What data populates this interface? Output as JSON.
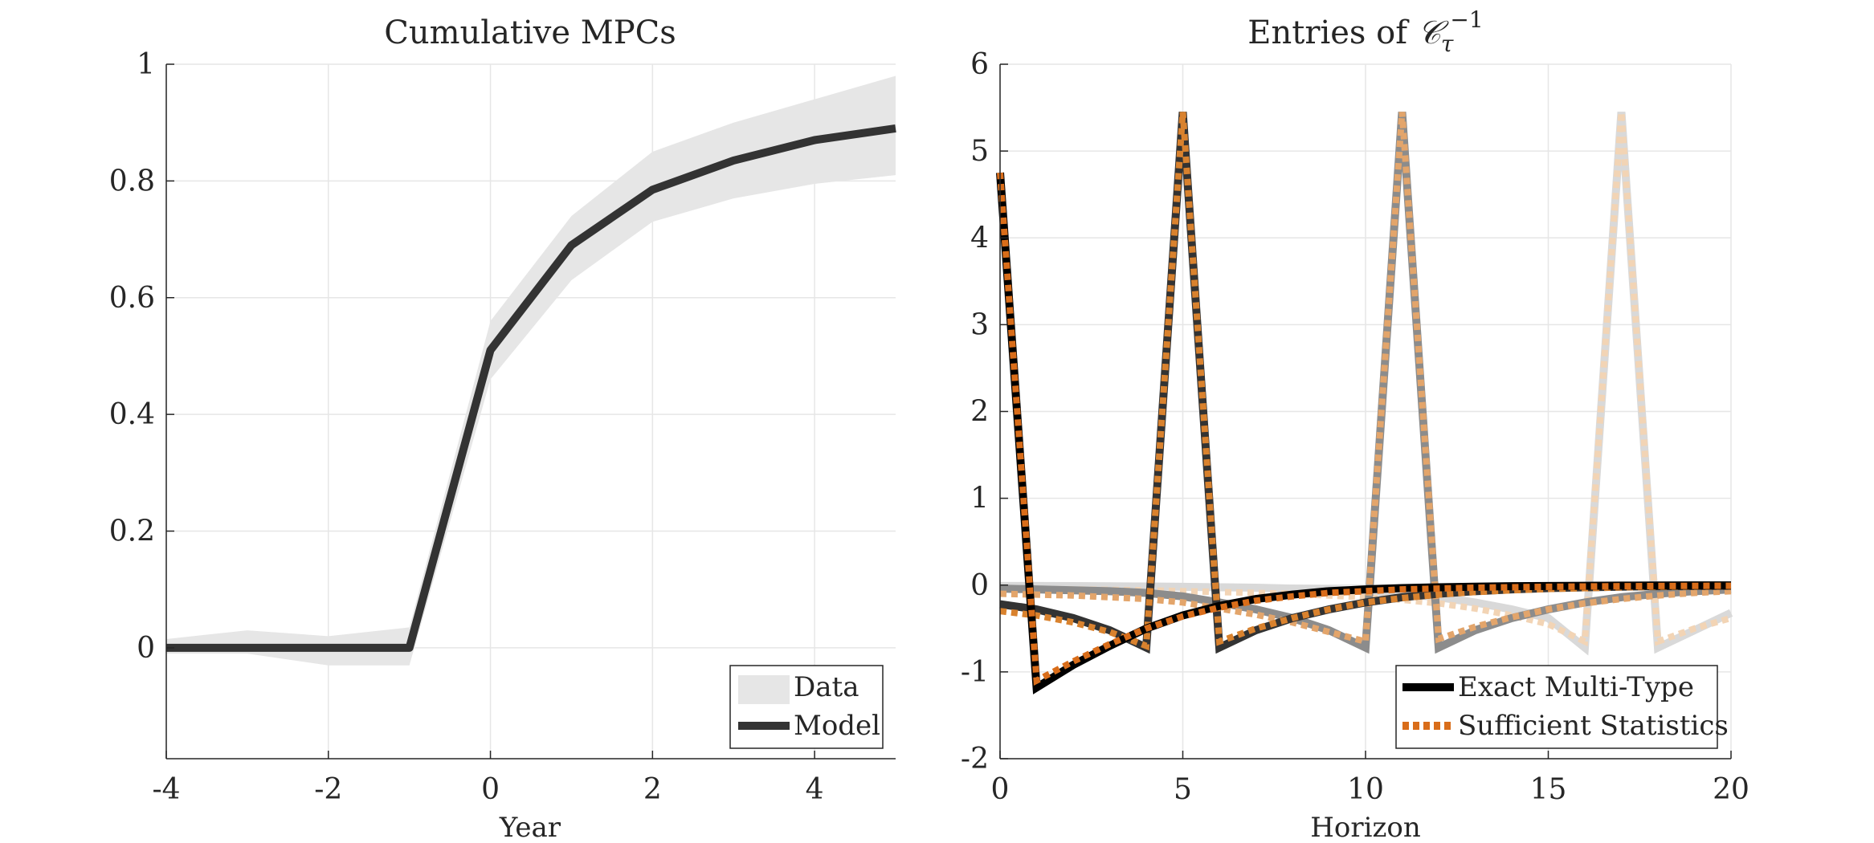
{
  "chart_data": [
    {
      "type": "line",
      "title": "Cumulative MPCs",
      "xlabel": "Year",
      "ylabel": "",
      "xlim": [
        -4,
        5
      ],
      "ylim": [
        -0.19,
        1
      ],
      "xticks": [
        -4,
        -2,
        0,
        2,
        4
      ],
      "yticks": [
        0,
        0.2,
        0.4,
        0.6,
        0.8,
        1
      ],
      "xtick_labels": [
        "-4",
        "-2",
        "0",
        "2",
        "4"
      ],
      "ytick_labels": [
        "0",
        "0.2",
        "0.4",
        "0.6",
        "0.8",
        "1"
      ],
      "grid": true,
      "legend_position": "bottom-right",
      "band": {
        "name": "Data",
        "color": "#e6e6e6",
        "x": [
          -4,
          -3,
          -2,
          -1,
          0,
          1,
          2,
          3,
          4,
          5
        ],
        "lower": [
          -0.01,
          -0.01,
          -0.03,
          -0.03,
          0.46,
          0.63,
          0.73,
          0.77,
          0.795,
          0.81
        ],
        "upper": [
          0.015,
          0.03,
          0.02,
          0.035,
          0.56,
          0.74,
          0.85,
          0.9,
          0.94,
          0.98
        ]
      },
      "series": [
        {
          "name": "Model",
          "color": "#333333",
          "x": [
            -4,
            -3,
            -2,
            -1,
            0,
            1,
            2,
            3,
            4,
            5
          ],
          "values": [
            0,
            0,
            0,
            0,
            0.51,
            0.69,
            0.785,
            0.835,
            0.87,
            0.89
          ]
        }
      ]
    },
    {
      "type": "line",
      "title_prefix": "Entries of ",
      "title_symbol": "𝒞",
      "title_sub": "τ",
      "title_sup": "−1",
      "xlabel": "Horizon",
      "ylabel": "",
      "xlim": [
        0,
        20
      ],
      "ylim": [
        -2,
        6
      ],
      "xticks": [
        0,
        5,
        10,
        15,
        20
      ],
      "yticks": [
        -2,
        -1,
        0,
        1,
        2,
        3,
        4,
        5,
        6
      ],
      "xtick_labels": [
        "0",
        "5",
        "10",
        "15",
        "20"
      ],
      "ytick_labels": [
        "-2",
        "-1",
        "0",
        "1",
        "2",
        "3",
        "4",
        "5",
        "6"
      ],
      "grid": true,
      "legend_position": "bottom-right",
      "legend": [
        {
          "name": "Exact Multi-Type",
          "color": "#000000",
          "style": "solid"
        },
        {
          "name": "Sufficient Statistics",
          "color": "#d96d1a",
          "style": "dotted"
        }
      ],
      "series": [
        {
          "column": 0,
          "exact_color": "#000000",
          "suff_color": "#d96d1a",
          "x": [
            0,
            1,
            2,
            3,
            4,
            5,
            6,
            7,
            8,
            9,
            10,
            11,
            12,
            13,
            14,
            15,
            16,
            17,
            18,
            19,
            20
          ],
          "exact": [
            4.75,
            -1.18,
            -0.92,
            -0.7,
            -0.5,
            -0.35,
            -0.24,
            -0.16,
            -0.11,
            -0.07,
            -0.05,
            -0.035,
            -0.025,
            -0.018,
            -0.013,
            -0.01,
            -0.008,
            -0.006,
            -0.005,
            -0.004,
            -0.003
          ],
          "sufficient": [
            4.75,
            -1.1,
            -0.88,
            -0.68,
            -0.5,
            -0.36,
            -0.26,
            -0.18,
            -0.13,
            -0.09,
            -0.07,
            -0.05,
            -0.04,
            -0.03,
            -0.025,
            -0.02,
            -0.016,
            -0.013,
            -0.011,
            -0.009,
            -0.008
          ]
        },
        {
          "column": 5,
          "exact_color": "#333333",
          "suff_color": "#d9822e",
          "x": [
            0,
            1,
            2,
            3,
            4,
            5,
            6,
            7,
            8,
            9,
            10,
            11,
            12,
            13,
            14,
            15,
            16,
            17,
            18,
            19,
            20
          ],
          "exact": [
            -0.22,
            -0.28,
            -0.38,
            -0.52,
            -0.72,
            5.45,
            -0.72,
            -0.52,
            -0.38,
            -0.28,
            -0.2,
            -0.14,
            -0.1,
            -0.07,
            -0.05,
            -0.035,
            -0.025,
            -0.018,
            -0.013,
            -0.01,
            -0.008
          ],
          "sufficient": [
            -0.3,
            -0.35,
            -0.43,
            -0.54,
            -0.7,
            5.45,
            -0.65,
            -0.5,
            -0.38,
            -0.28,
            -0.2,
            -0.15,
            -0.11,
            -0.08,
            -0.06,
            -0.045,
            -0.035,
            -0.027,
            -0.02,
            -0.016,
            -0.013
          ]
        },
        {
          "column": 11,
          "exact_color": "#8c8c8c",
          "suff_color": "#e3a56b",
          "x": [
            0,
            1,
            2,
            3,
            4,
            5,
            6,
            7,
            8,
            9,
            10,
            11,
            12,
            13,
            14,
            15,
            16,
            17,
            18,
            19,
            20
          ],
          "exact": [
            -0.04,
            -0.05,
            -0.06,
            -0.07,
            -0.09,
            -0.13,
            -0.2,
            -0.28,
            -0.38,
            -0.52,
            -0.72,
            5.45,
            -0.72,
            -0.52,
            -0.38,
            -0.28,
            -0.2,
            -0.14,
            -0.1,
            -0.07,
            -0.05
          ],
          "sufficient": [
            -0.1,
            -0.11,
            -0.12,
            -0.14,
            -0.16,
            -0.2,
            -0.27,
            -0.34,
            -0.43,
            -0.54,
            -0.65,
            5.45,
            -0.62,
            -0.48,
            -0.37,
            -0.28,
            -0.21,
            -0.16,
            -0.12,
            -0.09,
            -0.07
          ]
        },
        {
          "column": 17,
          "exact_color": "#d9d9d9",
          "suff_color": "#f2d4b5",
          "x": [
            0,
            1,
            2,
            3,
            4,
            5,
            6,
            7,
            8,
            9,
            10,
            11,
            12,
            13,
            14,
            15,
            16,
            17,
            18,
            19,
            20
          ],
          "exact": [
            -0.01,
            -0.01,
            -0.012,
            -0.014,
            -0.016,
            -0.02,
            -0.025,
            -0.03,
            -0.04,
            -0.05,
            -0.07,
            -0.1,
            -0.14,
            -0.2,
            -0.28,
            -0.38,
            -0.72,
            5.45,
            -0.72,
            -0.52,
            -0.32
          ],
          "sufficient": [
            -0.04,
            -0.045,
            -0.05,
            -0.055,
            -0.06,
            -0.07,
            -0.08,
            -0.09,
            -0.1,
            -0.12,
            -0.14,
            -0.17,
            -0.21,
            -0.27,
            -0.35,
            -0.45,
            -0.65,
            5.45,
            -0.65,
            -0.5,
            -0.38
          ]
        }
      ]
    }
  ]
}
